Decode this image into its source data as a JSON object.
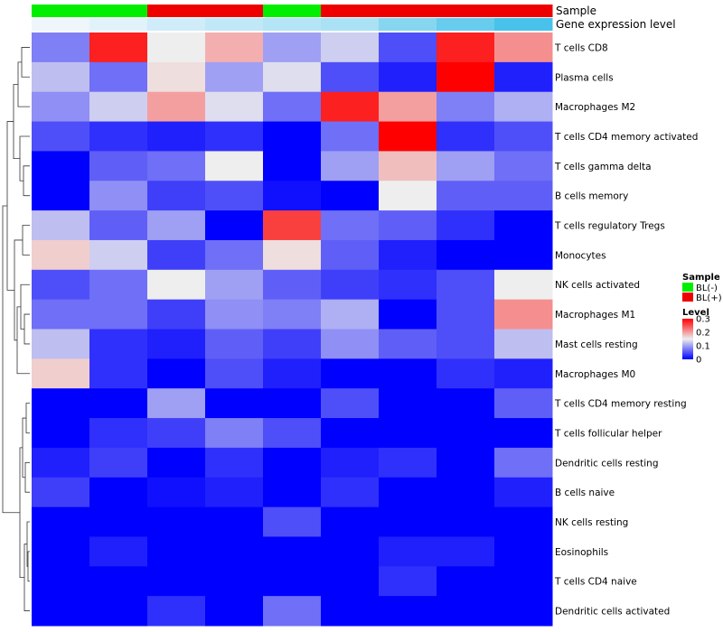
{
  "chart_data": {
    "type": "heatmap",
    "annotation_titles": {
      "sample": "Sample",
      "gene_expression": "Gene expression level"
    },
    "sample_groups": [
      "BL(-)",
      "BL(-)",
      "BL(+)",
      "BL(+)",
      "BL(-)",
      "BL(+)",
      "BL(+)",
      "BL(+)",
      "BL(+)"
    ],
    "gene_expression_levels": [
      0.05,
      0.08,
      0.12,
      0.15,
      0.18,
      0.2,
      0.28,
      0.35,
      0.42
    ],
    "rows": [
      "T cells CD8",
      "Plasma cells",
      "Macrophages M2",
      "T cells CD4 memory activated",
      "T cells gamma delta",
      "B cells memory",
      "T cells regulatory  Tregs",
      "Monocytes",
      "NK cells activated",
      "Macrophages M1",
      "Mast cells resting",
      "Macrophages M0",
      "T cells CD4 memory resting",
      "T cells follicular helper",
      "Dendritic cells resting",
      "B cells naive",
      "NK cells resting",
      "Eosinophils",
      "T cells CD4 naive",
      "Dendritic cells activated"
    ],
    "values": [
      [
        0.08,
        0.28,
        0.15,
        0.19,
        0.1,
        0.13,
        0.05,
        0.28,
        0.21
      ],
      [
        0.12,
        0.07,
        0.16,
        0.1,
        0.14,
        0.05,
        0.02,
        0.3,
        0.02
      ],
      [
        0.09,
        0.13,
        0.2,
        0.14,
        0.07,
        0.28,
        0.2,
        0.08,
        0.11
      ],
      [
        0.05,
        0.03,
        0.02,
        0.03,
        0.0,
        0.07,
        0.3,
        0.03,
        0.05
      ],
      [
        0.0,
        0.06,
        0.07,
        0.15,
        0.0,
        0.1,
        0.18,
        0.1,
        0.07
      ],
      [
        0.0,
        0.09,
        0.04,
        0.05,
        0.01,
        0.0,
        0.15,
        0.06,
        0.06
      ],
      [
        0.12,
        0.06,
        0.1,
        0.0,
        0.26,
        0.07,
        0.06,
        0.03,
        0.0
      ],
      [
        0.17,
        0.13,
        0.04,
        0.07,
        0.16,
        0.06,
        0.02,
        0.0,
        0.0
      ],
      [
        0.05,
        0.07,
        0.15,
        0.1,
        0.06,
        0.04,
        0.03,
        0.05,
        0.15
      ],
      [
        0.07,
        0.07,
        0.04,
        0.09,
        0.08,
        0.11,
        0.0,
        0.05,
        0.21
      ],
      [
        0.12,
        0.03,
        0.02,
        0.06,
        0.04,
        0.09,
        0.06,
        0.05,
        0.12
      ],
      [
        0.17,
        0.03,
        0.0,
        0.05,
        0.02,
        0.0,
        0.0,
        0.03,
        0.02
      ],
      [
        0.0,
        0.0,
        0.1,
        0.0,
        0.0,
        0.05,
        0.0,
        0.0,
        0.06
      ],
      [
        0.0,
        0.03,
        0.04,
        0.08,
        0.05,
        0.0,
        0.0,
        0.0,
        0.0
      ],
      [
        0.02,
        0.04,
        0.0,
        0.03,
        0.0,
        0.02,
        0.03,
        0.0,
        0.07
      ],
      [
        0.04,
        0.0,
        0.01,
        0.02,
        0.0,
        0.03,
        0.0,
        0.0,
        0.02
      ],
      [
        0.0,
        0.0,
        0.0,
        0.0,
        0.05,
        0.0,
        0.0,
        0.0,
        0.0
      ],
      [
        0.0,
        0.02,
        0.0,
        0.0,
        0.0,
        0.0,
        0.02,
        0.02,
        0.0
      ],
      [
        0.0,
        0.0,
        0.0,
        0.0,
        0.0,
        0.0,
        0.03,
        0.0,
        0.0
      ],
      [
        0.0,
        0.0,
        0.03,
        0.0,
        0.07,
        0.0,
        0.0,
        0.0,
        0.0
      ]
    ],
    "color_scale": {
      "min": 0,
      "mid": 0.15,
      "max": 0.3,
      "low_color": "#0000FF",
      "mid_color": "#EEEEEE",
      "high_color": "#FF0000"
    },
    "legend": {
      "sample_title": "Sample",
      "sample_entries": [
        {
          "label": "BL(-)",
          "color": "#00EE00"
        },
        {
          "label": "BL(+)",
          "color": "#EE0000"
        }
      ],
      "level_title": "Level",
      "level_ticks": [
        "0.3",
        "0.2",
        "0.1",
        "0"
      ],
      "level_tick_values": [
        0.3,
        0.2,
        0.1,
        0
      ]
    },
    "gene_expression_colors": {
      "low": "#EEF6FB",
      "high": "#48C2EA"
    },
    "dendrogram": "left row clustering tree"
  }
}
